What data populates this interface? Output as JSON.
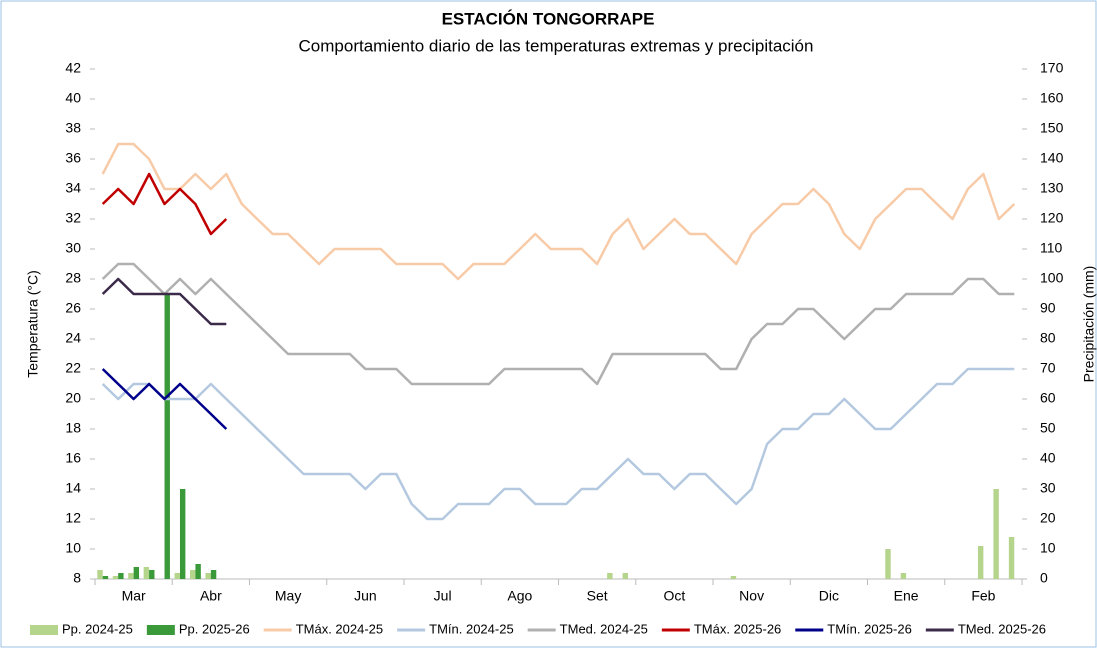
{
  "chart_data": {
    "type": "combo",
    "title": "ESTACIÓN TONGORRAPE",
    "subtitle": "Comportamiento diario de las temperaturas extremas y precipitación",
    "y_label": "Temperatura (°C)",
    "y2_label": "Precipitación (mm)",
    "categories": [
      null,
      null,
      "Mar",
      null,
      null,
      null,
      null,
      "Abr",
      null,
      null,
      null,
      null,
      "May",
      null,
      null,
      null,
      null,
      "Jun",
      null,
      null,
      null,
      null,
      "Jul",
      null,
      null,
      null,
      null,
      "Ago",
      null,
      null,
      null,
      null,
      "Set",
      null,
      null,
      null,
      null,
      "Oct",
      null,
      null,
      null,
      null,
      "Nov",
      null,
      null,
      null,
      null,
      "Dic",
      null,
      null,
      null,
      null,
      "Ene",
      null,
      null,
      null,
      null,
      "Feb",
      null,
      null
    ],
    "ylim": [
      8,
      42
    ],
    "yticks": [
      8,
      10,
      12,
      14,
      16,
      18,
      20,
      22,
      24,
      26,
      28,
      30,
      32,
      34,
      36,
      38,
      40,
      42
    ],
    "y2lim": [
      0,
      170
    ],
    "y2ticks": [
      0,
      10,
      20,
      30,
      40,
      50,
      60,
      70,
      80,
      90,
      100,
      110,
      120,
      130,
      140,
      150,
      160,
      170
    ],
    "series": [
      {
        "name": "Pp. 2024-25",
        "type": "bar",
        "axis": "y2",
        "color": "#b5d48c",
        "values": [
          3,
          1,
          2,
          4,
          0,
          2,
          3,
          2,
          0,
          0,
          0,
          0,
          0,
          0,
          0,
          0,
          0,
          0,
          0,
          0,
          0,
          0,
          0,
          0,
          0,
          0,
          0,
          0,
          0,
          0,
          0,
          0,
          0,
          2,
          2,
          0,
          0,
          0,
          0,
          0,
          0,
          1,
          0,
          0,
          0,
          0,
          0,
          0,
          0,
          0,
          0,
          10,
          2,
          0,
          0,
          0,
          0,
          11,
          30,
          14
        ]
      },
      {
        "name": "Pp. 2025-26",
        "type": "bar",
        "axis": "y2",
        "color": "#3a9a3a",
        "values": [
          1,
          2,
          4,
          3,
          95,
          30,
          5,
          3,
          0,
          null,
          null,
          null,
          null,
          null,
          null,
          null,
          null,
          null,
          null,
          null,
          null,
          null,
          null,
          null,
          null,
          null,
          null,
          null,
          null,
          null,
          null,
          null,
          null,
          null,
          null,
          null,
          null,
          null,
          null,
          null,
          null,
          null,
          null,
          null,
          null,
          null,
          null,
          null,
          null,
          null,
          null,
          null,
          null,
          null,
          null,
          null,
          null,
          null,
          null,
          null
        ]
      },
      {
        "name": "TMáx. 2024-25",
        "type": "line",
        "color": "#f8cba8",
        "values": [
          35,
          37,
          37,
          36,
          34,
          34,
          35,
          34,
          35,
          33,
          32,
          31,
          31,
          30,
          29,
          30,
          30,
          30,
          30,
          29,
          29,
          29,
          29,
          28,
          29,
          29,
          29,
          30,
          31,
          30,
          30,
          30,
          29,
          31,
          32,
          30,
          31,
          32,
          31,
          31,
          30,
          29,
          31,
          32,
          33,
          33,
          34,
          33,
          31,
          30,
          32,
          33,
          34,
          34,
          33,
          32,
          34,
          35,
          32,
          33
        ]
      },
      {
        "name": "TMín. 2024-25",
        "type": "line",
        "color": "#b4c9e0",
        "values": [
          21,
          20,
          21,
          21,
          20,
          20,
          20,
          21,
          20,
          19,
          18,
          17,
          16,
          15,
          15,
          15,
          15,
          14,
          15,
          15,
          13,
          12,
          12,
          13,
          13,
          13,
          14,
          14,
          13,
          13,
          13,
          14,
          14,
          15,
          16,
          15,
          15,
          14,
          15,
          15,
          14,
          13,
          14,
          17,
          18,
          18,
          19,
          19,
          20,
          19,
          18,
          18,
          19,
          20,
          21,
          21,
          22,
          22,
          22,
          22
        ]
      },
      {
        "name": "TMed. 2024-25",
        "type": "line",
        "color": "#b0b0b0",
        "values": [
          28,
          29,
          29,
          28,
          27,
          28,
          27,
          28,
          27,
          26,
          25,
          24,
          23,
          23,
          23,
          23,
          23,
          22,
          22,
          22,
          21,
          21,
          21,
          21,
          21,
          21,
          22,
          22,
          22,
          22,
          22,
          22,
          21,
          23,
          23,
          23,
          23,
          23,
          23,
          23,
          22,
          22,
          24,
          25,
          25,
          26,
          26,
          25,
          24,
          25,
          26,
          26,
          27,
          27,
          27,
          27,
          28,
          28,
          27,
          27
        ]
      },
      {
        "name": "TMáx. 2025-26",
        "type": "line",
        "color": "#c00000",
        "values": [
          33,
          34,
          33,
          35,
          33,
          34,
          33,
          31,
          32,
          null,
          null,
          null,
          null,
          null,
          null,
          null,
          null,
          null,
          null,
          null,
          null,
          null,
          null,
          null,
          null,
          null,
          null,
          null,
          null,
          null,
          null,
          null,
          null,
          null,
          null,
          null,
          null,
          null,
          null,
          null,
          null,
          null,
          null,
          null,
          null,
          null,
          null,
          null,
          null,
          null,
          null,
          null,
          null,
          null,
          null,
          null,
          null,
          null,
          null,
          null
        ]
      },
      {
        "name": "TMín. 2025-26",
        "type": "line",
        "color": "#00008b",
        "values": [
          22,
          21,
          20,
          21,
          20,
          21,
          20,
          19,
          18,
          null,
          null,
          null,
          null,
          null,
          null,
          null,
          null,
          null,
          null,
          null,
          null,
          null,
          null,
          null,
          null,
          null,
          null,
          null,
          null,
          null,
          null,
          null,
          null,
          null,
          null,
          null,
          null,
          null,
          null,
          null,
          null,
          null,
          null,
          null,
          null,
          null,
          null,
          null,
          null,
          null,
          null,
          null,
          null,
          null,
          null,
          null,
          null,
          null,
          null,
          null
        ]
      },
      {
        "name": "TMed. 2025-26",
        "type": "line",
        "color": "#3b2a4a",
        "values": [
          27,
          28,
          27,
          27,
          27,
          27,
          26,
          25,
          25,
          null,
          null,
          null,
          null,
          null,
          null,
          null,
          null,
          null,
          null,
          null,
          null,
          null,
          null,
          null,
          null,
          null,
          null,
          null,
          null,
          null,
          null,
          null,
          null,
          null,
          null,
          null,
          null,
          null,
          null,
          null,
          null,
          null,
          null,
          null,
          null,
          null,
          null,
          null,
          null,
          null,
          null,
          null,
          null,
          null,
          null,
          null,
          null,
          null,
          null,
          null
        ]
      }
    ]
  }
}
